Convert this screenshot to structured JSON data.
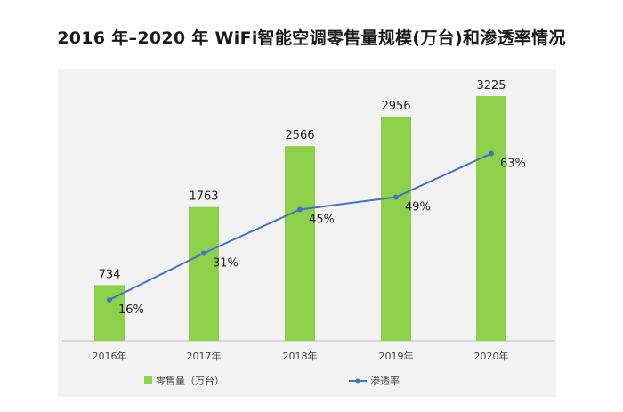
{
  "chart_data": {
    "type": "bar",
    "title": "2016 年–2020 年 WiFi智能空调零售量规模(万台)和渗透率情况",
    "categories": [
      "2016年",
      "2017年",
      "2018年",
      "2019年",
      "2020年"
    ],
    "series": [
      {
        "name": "零售量（万台）",
        "kind": "bar",
        "values": [
          734,
          1763,
          2566,
          2956,
          3225
        ]
      },
      {
        "name": "渗透率",
        "kind": "line",
        "values": [
          16,
          31,
          45,
          49,
          63
        ],
        "unit": "%",
        "labels": [
          "16%",
          "31%",
          "45%",
          "49%",
          "63%"
        ]
      }
    ],
    "ylim_bar": [
      0,
      3500
    ],
    "ylim_line": [
      0,
      80
    ],
    "legend_position": "bottom",
    "grid": false
  },
  "colors": {
    "bar": "#8dd04a",
    "line": "#4472c4",
    "plot_bg": "#f2f2f2",
    "axis": "#bfbfbf"
  }
}
